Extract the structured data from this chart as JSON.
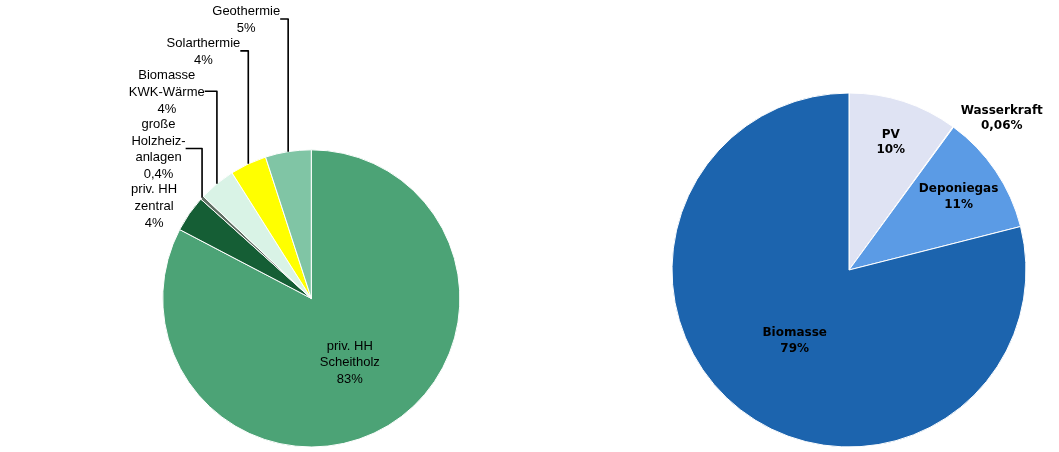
{
  "chart_data": [
    {
      "type": "pie",
      "categories": [
        "priv. HH\nScheitholz",
        "priv. HH\nzentral",
        "große\nHolzheiz-\nanlagen",
        "Biomasse\nKWK-Wärme",
        "Solarthermie",
        "Geothermie"
      ],
      "values": [
        83,
        4,
        0.4,
        4,
        4,
        5
      ],
      "value_labels": [
        "83%",
        "4%",
        "0,4%",
        "4%",
        "4%",
        "5%"
      ],
      "colors": [
        "#4ca376",
        "#155e35",
        "#5f6f63",
        "#d9f3e6",
        "#ffff00",
        "#80c5a5"
      ],
      "legend": false
    },
    {
      "type": "pie",
      "categories": [
        "PV",
        "Wasserkraft",
        "Deponiegas",
        "Biomasse"
      ],
      "values": [
        10,
        0.06,
        11,
        79
      ],
      "value_labels": [
        "10%",
        "0,06%",
        "11%",
        "79%"
      ],
      "colors": [
        "#dfe3f3",
        "#f4f6fb",
        "#5b9be5",
        "#1c64ae"
      ],
      "legend": false
    }
  ]
}
